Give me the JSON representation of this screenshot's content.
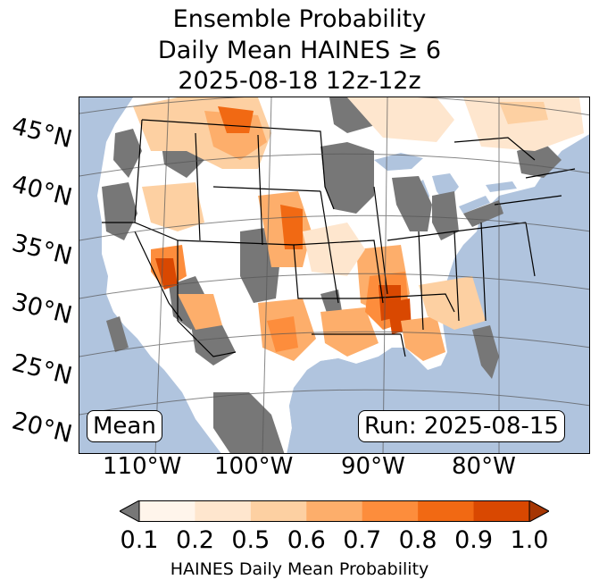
{
  "title": {
    "line1": "Ensemble Probability",
    "line2": "Daily Mean HAINES ≥ 6",
    "line3": "2025-08-18 12z-12z"
  },
  "map": {
    "ocean_color": "#b0c4de",
    "land_color": "#ffffff",
    "no_data_color": "#777777",
    "lat_labels": [
      "45°N",
      "40°N",
      "35°N",
      "30°N",
      "25°N",
      "20°N"
    ],
    "lon_labels": [
      "110°W",
      "100°W",
      "90°W",
      "80°W"
    ],
    "left_label": "Mean",
    "right_label": "Run: 2025-08-15"
  },
  "colorbar": {
    "ticks": [
      "0.1",
      "0.2",
      "0.5",
      "0.6",
      "0.7",
      "0.8",
      "0.9",
      "1.0"
    ],
    "colors": [
      "#fff5eb",
      "#fee6ce",
      "#fdd0a2",
      "#fdae6b",
      "#fd8d3c",
      "#f16913",
      "#d94801",
      "#a63603"
    ],
    "under_color": "#777777",
    "label": "HAINES Daily Mean Probability"
  }
}
